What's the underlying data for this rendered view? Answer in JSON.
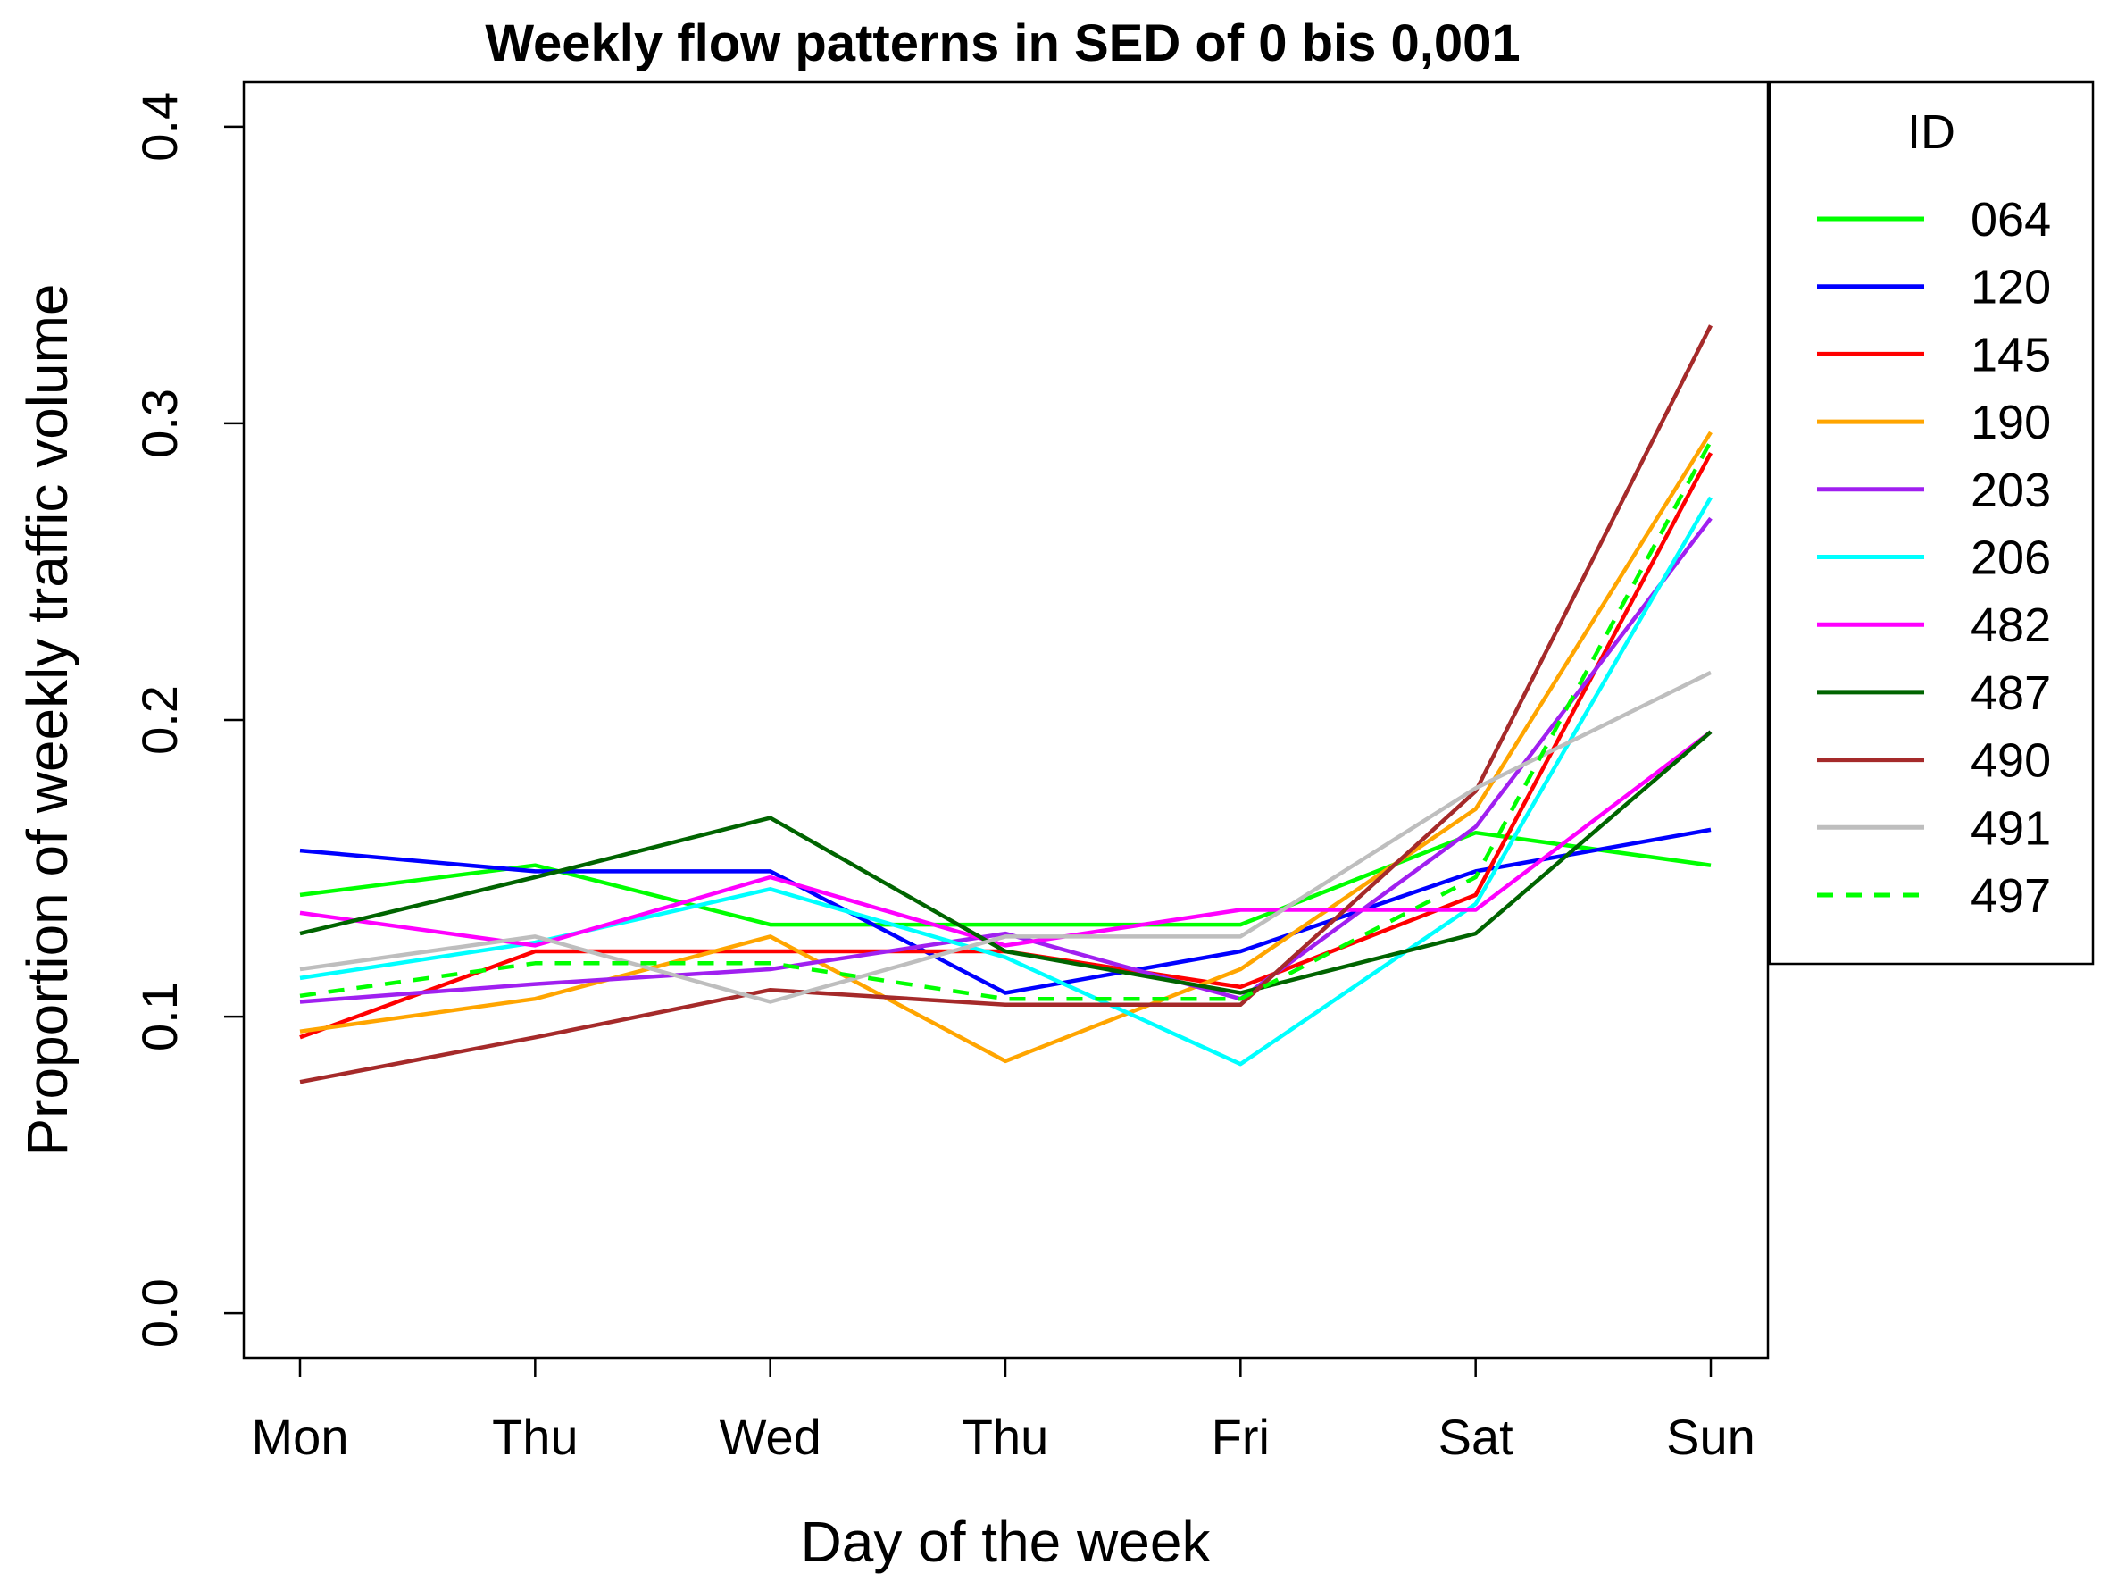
{
  "chart_data": {
    "type": "line",
    "title": "Weekly flow patterns in SED of 0 bis 0,001",
    "xlabel": "Day of the week",
    "ylabel": "Proportion of weekly traffic volume",
    "categories": [
      "Mon",
      "Thu",
      "Wed",
      "Thu",
      "Fri",
      "Sat",
      "Sun"
    ],
    "ylim": [
      -0.015,
      0.415
    ],
    "yticks": [
      "0.0",
      "0.1",
      "0.2",
      "0.3",
      "0.4"
    ],
    "ytick_values": [
      0,
      0.1,
      0.2,
      0.3,
      0.4
    ],
    "legend_title": "ID",
    "legend_position": "right",
    "series": [
      {
        "name": "064",
        "color": "#00ff00",
        "dashed": false,
        "values": [
          0.141,
          0.151,
          0.131,
          0.131,
          0.131,
          0.162,
          0.151
        ]
      },
      {
        "name": "120",
        "color": "#0000ff",
        "dashed": false,
        "values": [
          0.156,
          0.149,
          0.149,
          0.108,
          0.122,
          0.149,
          0.163
        ]
      },
      {
        "name": "145",
        "color": "#ff0000",
        "dashed": false,
        "values": [
          0.093,
          0.122,
          0.122,
          0.122,
          0.11,
          0.141,
          0.29
        ]
      },
      {
        "name": "190",
        "color": "#ffa500",
        "dashed": false,
        "values": [
          0.095,
          0.106,
          0.127,
          0.085,
          0.116,
          0.17,
          0.297
        ]
      },
      {
        "name": "203",
        "color": "#a020f0",
        "dashed": false,
        "values": [
          0.105,
          0.111,
          0.116,
          0.128,
          0.106,
          0.164,
          0.268
        ]
      },
      {
        "name": "206",
        "color": "#00ffff",
        "dashed": false,
        "values": [
          0.113,
          0.125,
          0.143,
          0.12,
          0.084,
          0.138,
          0.275
        ]
      },
      {
        "name": "482",
        "color": "#ff00ff",
        "dashed": false,
        "values": [
          0.135,
          0.124,
          0.147,
          0.124,
          0.136,
          0.136,
          0.196
        ]
      },
      {
        "name": "487",
        "color": "#006400",
        "dashed": false,
        "values": [
          0.128,
          0.147,
          0.167,
          0.122,
          0.108,
          0.128,
          0.196
        ]
      },
      {
        "name": "490",
        "color": "#a52a2a",
        "dashed": false,
        "values": [
          0.078,
          0.093,
          0.109,
          0.104,
          0.104,
          0.176,
          0.333
        ]
      },
      {
        "name": "491",
        "color": "#bebebe",
        "dashed": false,
        "values": [
          0.116,
          0.127,
          0.105,
          0.127,
          0.127,
          0.177,
          0.216
        ]
      },
      {
        "name": "497",
        "color": "#00ff00",
        "dashed": true,
        "values": [
          0.107,
          0.118,
          0.118,
          0.106,
          0.106,
          0.147,
          0.294
        ]
      }
    ]
  }
}
